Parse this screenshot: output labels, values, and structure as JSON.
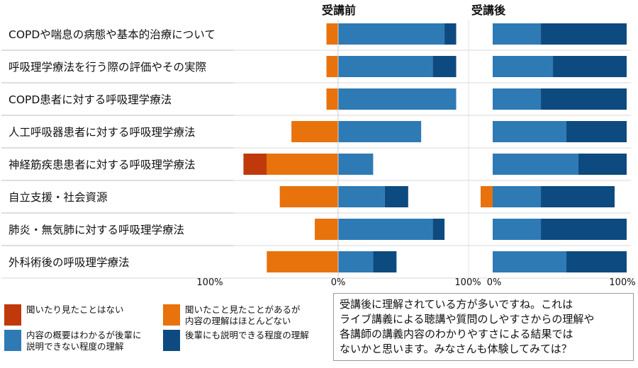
{
  "chart_data": {
    "type": "bar",
    "stacked": "diverging",
    "panels": [
      {
        "name": "受講前",
        "xlim": [
          -100,
          100
        ],
        "tick_labels": [
          "100%",
          "0%",
          "100%"
        ]
      },
      {
        "name": "受講後",
        "xlim": [
          0,
          100
        ],
        "tick_labels": [
          "0%",
          "100%"
        ]
      }
    ],
    "categories": [
      "COPDや喘息の病態や基本的治療について",
      "呼吸理学療法を行う際の評価やその実際",
      "COPD患者に対する呼吸理学療法",
      "人工呼吸器患者に対する呼吸理学療法",
      "神経筋疾患患者に対する呼吸理学療法",
      "自立支援・社会資源",
      "肺炎・無気肺に対する呼吸理学療法",
      "外科術後の呼吸理学療法"
    ],
    "series": [
      {
        "name": "聞いたり見たことはない",
        "color": "#c0390b",
        "before": [
          0,
          0,
          0,
          0,
          18,
          0,
          0,
          0
        ],
        "after": [
          0,
          0,
          0,
          0,
          0,
          0,
          0,
          0
        ]
      },
      {
        "name": "聞いたこと見たことがあるが\n内容の理解はほとんどない",
        "color": "#e8720c",
        "before": [
          9,
          9,
          9,
          36,
          55,
          45,
          18,
          55
        ],
        "after": [
          0,
          0,
          0,
          0,
          0,
          9,
          0,
          0
        ]
      },
      {
        "name": "内容の概要はわかるが後輩に\n説明できない程度の理解",
        "color": "#2e7ab5",
        "before": [
          82,
          73,
          91,
          64,
          27,
          36,
          73,
          27
        ],
        "after": [
          36,
          45,
          36,
          55,
          64,
          36,
          36,
          55
        ]
      },
      {
        "name": "後輩にも説明できる程度の理解",
        "color": "#0d4a7f",
        "before": [
          9,
          18,
          0,
          0,
          0,
          18,
          9,
          18
        ],
        "after": [
          64,
          55,
          64,
          45,
          36,
          55,
          64,
          45
        ]
      }
    ],
    "grid": false,
    "legend": "bottom-left"
  },
  "comment": "受講後に理解されている方が多いですね。これは\nライブ講義による聴講や質問のしやすさからの理解や\n各講師の講義内容のわかりやすさによる結果では\nないかと思います。みなさんも体験してみては？"
}
